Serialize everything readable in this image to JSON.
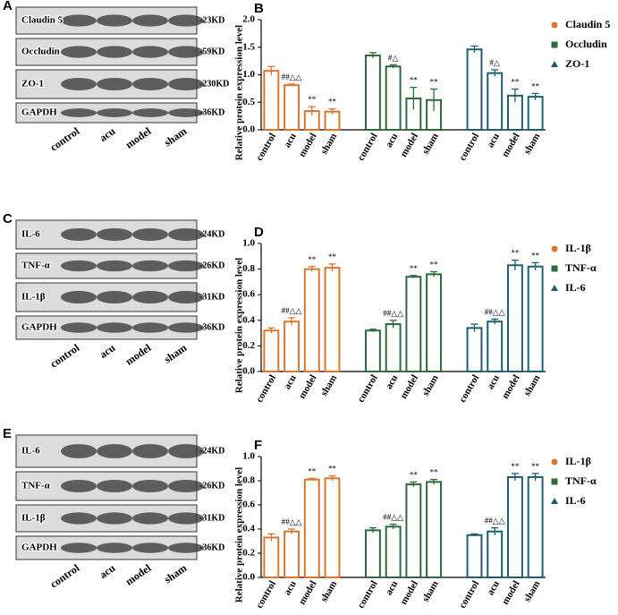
{
  "blots": [
    {
      "label": "A",
      "rows": [
        {
          "name": "Claudin 5",
          "size": "-23KD"
        },
        {
          "name": "Occludin",
          "size": "-59KD"
        },
        {
          "name": "ZO-1",
          "size": "-230KD"
        },
        {
          "name": "GAPDH",
          "size": "-36KD"
        }
      ],
      "lanes": [
        "control",
        "acu",
        "model",
        "sham"
      ]
    },
    {
      "label": "C",
      "rows": [
        {
          "name": "IL-6",
          "size": "-24KD"
        },
        {
          "name": "TNF-α",
          "size": "-26KD"
        },
        {
          "name": "IL-1β",
          "size": "-31KD"
        },
        {
          "name": "GAPDH",
          "size": "-36KD"
        }
      ],
      "lanes": [
        "control",
        "acu",
        "model",
        "sham"
      ]
    },
    {
      "label": "E",
      "rows": [
        {
          "name": "IL-6",
          "size": "-24KD"
        },
        {
          "name": "TNF-α",
          "size": "-26KD"
        },
        {
          "name": "IL-1β",
          "size": "-31KD"
        },
        {
          "name": "GAPDH",
          "size": "-36KD"
        }
      ],
      "lanes": [
        "control",
        "acu",
        "model",
        "sham"
      ]
    }
  ],
  "chart_data": [
    {
      "type": "bar",
      "label": "B",
      "y_label": "Relative protein expression level",
      "categories": [
        "control",
        "acu",
        "model",
        "sham"
      ],
      "ylim": [
        0,
        2.0
      ],
      "yticks": [
        {
          "value": 0,
          "label": "0.0"
        },
        {
          "value": 0.5,
          "label": "0.5"
        },
        {
          "value": 1,
          "label": "1.0"
        },
        {
          "value": 1.5,
          "label": "1.5"
        },
        {
          "value": 2,
          "label": "2.0"
        }
      ],
      "legend": "right",
      "series": [
        {
          "name": "Claudin 5",
          "color": "#d9772f",
          "marker": "circle",
          "values": [
            1.07,
            0.81,
            0.34,
            0.33
          ],
          "errors": [
            0.08,
            0.02,
            0.08,
            0.05
          ],
          "annotations": [
            null,
            "##△△",
            "**",
            "**"
          ]
        },
        {
          "name": "Occludin",
          "color": "#2e6b3a",
          "marker": "square",
          "values": [
            1.35,
            1.15,
            0.57,
            0.54
          ],
          "errors": [
            0.05,
            0.03,
            0.2,
            0.2
          ],
          "annotations": [
            null,
            "#△",
            "**",
            "**"
          ]
        },
        {
          "name": "ZO-1",
          "color": "#1f5e6e",
          "marker": "triangle",
          "values": [
            1.46,
            1.03,
            0.62,
            0.6
          ],
          "errors": [
            0.06,
            0.06,
            0.12,
            0.06
          ],
          "annotations": [
            null,
            "#△",
            "**",
            "**"
          ]
        }
      ]
    },
    {
      "type": "bar",
      "label": "D",
      "y_label": "Relative protein expression level",
      "categories": [
        "control",
        "acu",
        "model",
        "sham"
      ],
      "ylim": [
        0,
        1.0
      ],
      "yticks": [
        {
          "value": 0,
          "label": "0.0"
        },
        {
          "value": 0.2,
          "label": "0.2"
        },
        {
          "value": 0.4,
          "label": "0.4"
        },
        {
          "value": 0.6,
          "label": "0.6"
        },
        {
          "value": 0.8,
          "label": "0.8"
        },
        {
          "value": 1,
          "label": "1.0"
        }
      ],
      "legend": "right",
      "series": [
        {
          "name": "IL-1β",
          "color": "#d9772f",
          "marker": "circle",
          "values": [
            0.32,
            0.39,
            0.8,
            0.81
          ],
          "errors": [
            0.02,
            0.03,
            0.02,
            0.03
          ],
          "annotations": [
            null,
            "##△△",
            "**",
            "**"
          ]
        },
        {
          "name": "TNF-α",
          "color": "#2e6b3a",
          "marker": "square",
          "values": [
            0.32,
            0.37,
            0.74,
            0.76
          ],
          "errors": [
            0.01,
            0.03,
            0.01,
            0.02
          ],
          "annotations": [
            null,
            "##△△",
            "**",
            "**"
          ]
        },
        {
          "name": "IL-6",
          "color": "#1f5e6e",
          "marker": "triangle",
          "values": [
            0.34,
            0.39,
            0.83,
            0.82
          ],
          "errors": [
            0.03,
            0.02,
            0.04,
            0.03
          ],
          "annotations": [
            null,
            "##△△",
            "**",
            "**"
          ]
        }
      ]
    },
    {
      "type": "bar",
      "label": "F",
      "y_label": "Relative protein expression level",
      "categories": [
        "control",
        "acu",
        "model",
        "sham"
      ],
      "ylim": [
        0,
        1.0
      ],
      "yticks": [
        {
          "value": 0,
          "label": "0.0"
        },
        {
          "value": 0.2,
          "label": "0.2"
        },
        {
          "value": 0.4,
          "label": "0.4"
        },
        {
          "value": 0.6,
          "label": "0.6"
        },
        {
          "value": 0.8,
          "label": "0.8"
        },
        {
          "value": 1,
          "label": "1.0"
        }
      ],
      "legend": "right",
      "series": [
        {
          "name": "IL-1β",
          "color": "#d9772f",
          "marker": "circle",
          "values": [
            0.33,
            0.38,
            0.81,
            0.82
          ],
          "errors": [
            0.03,
            0.02,
            0.01,
            0.02
          ],
          "annotations": [
            null,
            "##△△",
            "**",
            "**"
          ]
        },
        {
          "name": "TNF-α",
          "color": "#2e6b3a",
          "marker": "square",
          "values": [
            0.39,
            0.42,
            0.77,
            0.79
          ],
          "errors": [
            0.02,
            0.02,
            0.02,
            0.02
          ],
          "annotations": [
            null,
            "##△△",
            "**",
            "**"
          ]
        },
        {
          "name": "IL-6",
          "color": "#1f5e6e",
          "marker": "triangle",
          "values": [
            0.35,
            0.38,
            0.83,
            0.83
          ],
          "errors": [
            0.01,
            0.03,
            0.03,
            0.03
          ],
          "annotations": [
            null,
            "##△△",
            "**",
            "**"
          ]
        }
      ]
    }
  ]
}
